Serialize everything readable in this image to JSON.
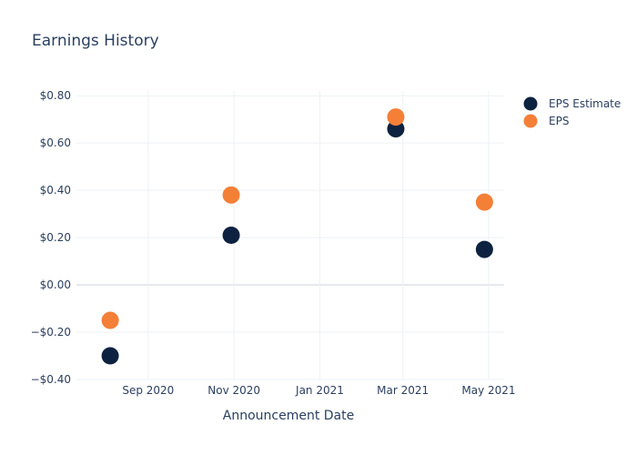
{
  "chart_data": {
    "type": "scatter",
    "title": "Earnings History",
    "xlabel": "Announcement Date",
    "ylabel": "",
    "x_tick_labels": [
      "Sep 2020",
      "Nov 2020",
      "Jan 2021",
      "Mar 2021",
      "May 2021"
    ],
    "x_ticks": [
      "2020-09-01",
      "2020-11-01",
      "2021-01-01",
      "2021-03-01",
      "2021-05-01"
    ],
    "xlim": [
      "2020-07-12",
      "2021-05-12"
    ],
    "y_tick_labels": [
      "$0.80",
      "$0.60",
      "$0.40",
      "$0.20",
      "$0.00",
      "−$0.20",
      "−$0.40"
    ],
    "y_ticks": [
      0.8,
      0.6,
      0.4,
      0.2,
      0.0,
      -0.2,
      -0.4
    ],
    "ylim": [
      -0.4,
      0.82
    ],
    "grid": true,
    "legend_position": "top-right",
    "series": [
      {
        "name": "EPS Estimate",
        "color": "#0d2240",
        "points": [
          {
            "x": "2020-08-05",
            "y": -0.3
          },
          {
            "x": "2020-10-30",
            "y": 0.21
          },
          {
            "x": "2021-02-24",
            "y": 0.66
          },
          {
            "x": "2021-04-28",
            "y": 0.15
          }
        ]
      },
      {
        "name": "EPS",
        "color": "#f47f37",
        "points": [
          {
            "x": "2020-08-05",
            "y": -0.15
          },
          {
            "x": "2020-10-30",
            "y": 0.38
          },
          {
            "x": "2021-02-24",
            "y": 0.71
          },
          {
            "x": "2021-04-28",
            "y": 0.35
          }
        ]
      }
    ]
  }
}
